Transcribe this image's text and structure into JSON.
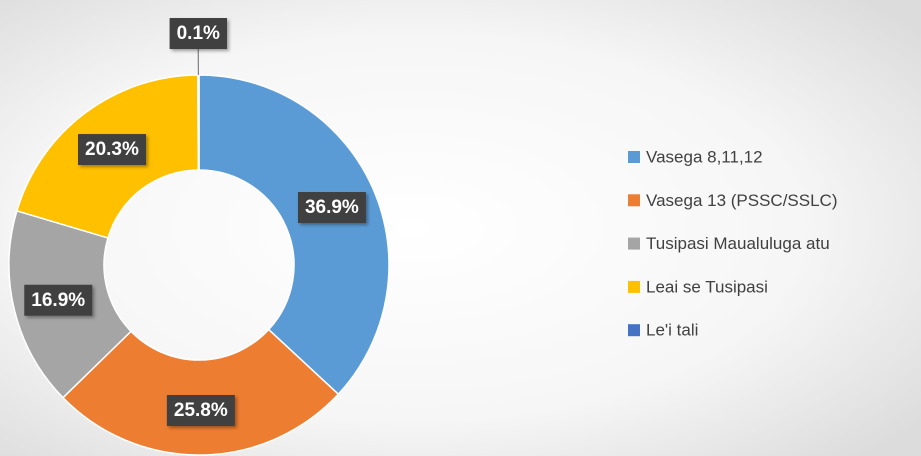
{
  "chart_data": {
    "type": "pie",
    "categories": [
      "Vasega 8,11,12",
      "Vasega 13 (PSSC/SSLC)",
      "Tusipasi Maualuluga atu",
      "Leai se Tusipasi",
      "Le'i tali"
    ],
    "values": [
      36.9,
      25.8,
      16.9,
      20.3,
      0.1
    ],
    "value_labels": [
      "36.9%",
      "25.8%",
      "16.9%",
      "20.3%",
      "0.1%"
    ],
    "colors": [
      "#5b9bd5",
      "#ed7d31",
      "#a5a5a5",
      "#ffc000",
      "#4472c4"
    ],
    "legend": "right"
  }
}
